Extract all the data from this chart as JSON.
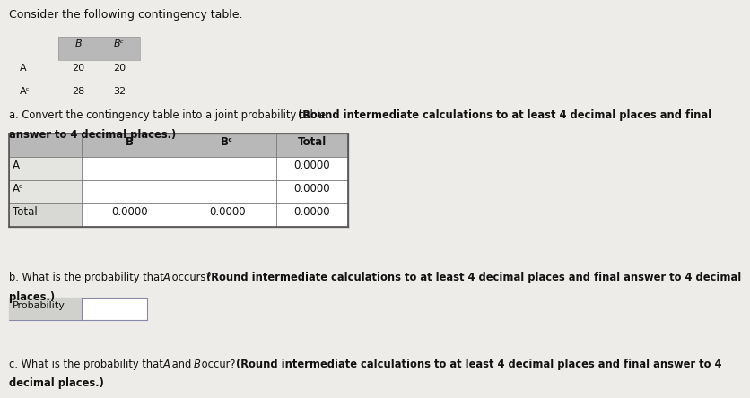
{
  "title": "Consider the following contingency table.",
  "ct_header": [
    "B",
    "Bᶜ"
  ],
  "ct_row1": [
    "A",
    "20",
    "20"
  ],
  "ct_row2": [
    "Aᶜ",
    "28",
    "32"
  ],
  "part_a_normal": "a. Convert the contingency table into a joint probability table. ",
  "part_a_bold": "(Round intermediate calculations to at least 4 decimal places and final\nanswer to 4 decimal places.)",
  "jt_header": [
    "",
    "B",
    "Bᶜ",
    "Total"
  ],
  "jt_row1": [
    "A",
    "",
    "",
    "0.0000"
  ],
  "jt_row2": [
    "Aᶜ",
    "",
    "",
    "0.0000"
  ],
  "jt_row3": [
    "Total",
    "0.0000",
    "0.0000",
    "0.0000"
  ],
  "part_b_normal": "b. What is the probability that ",
  "part_b_italic": "A",
  "part_b_normal2": " occurs? ",
  "part_b_bold": "(Round intermediate calculations to at least 4 decimal places and final answer to 4 decimal\nplaces.)",
  "prob_label": "Probability",
  "part_c_normal": "c. What is the probability that ",
  "part_c_italic1": "A",
  "part_c_normal2": " and ",
  "part_c_italic2": "B",
  "part_c_normal3": " occur? ",
  "part_c_bold": "(Round intermediate calculations to at least 4 decimal places and final answer to 4\ndecimal places.)",
  "bg_color": "#eeece8",
  "table_header_bg": "#b8b8b8",
  "table_row_bg1": "#e8e8e4",
  "table_row_bg2": "#e8e8e4",
  "table_border": "#888888",
  "white": "#ffffff",
  "prob_box_label_bg": "#d0d0cc",
  "prob_box_border": "#8888aa"
}
